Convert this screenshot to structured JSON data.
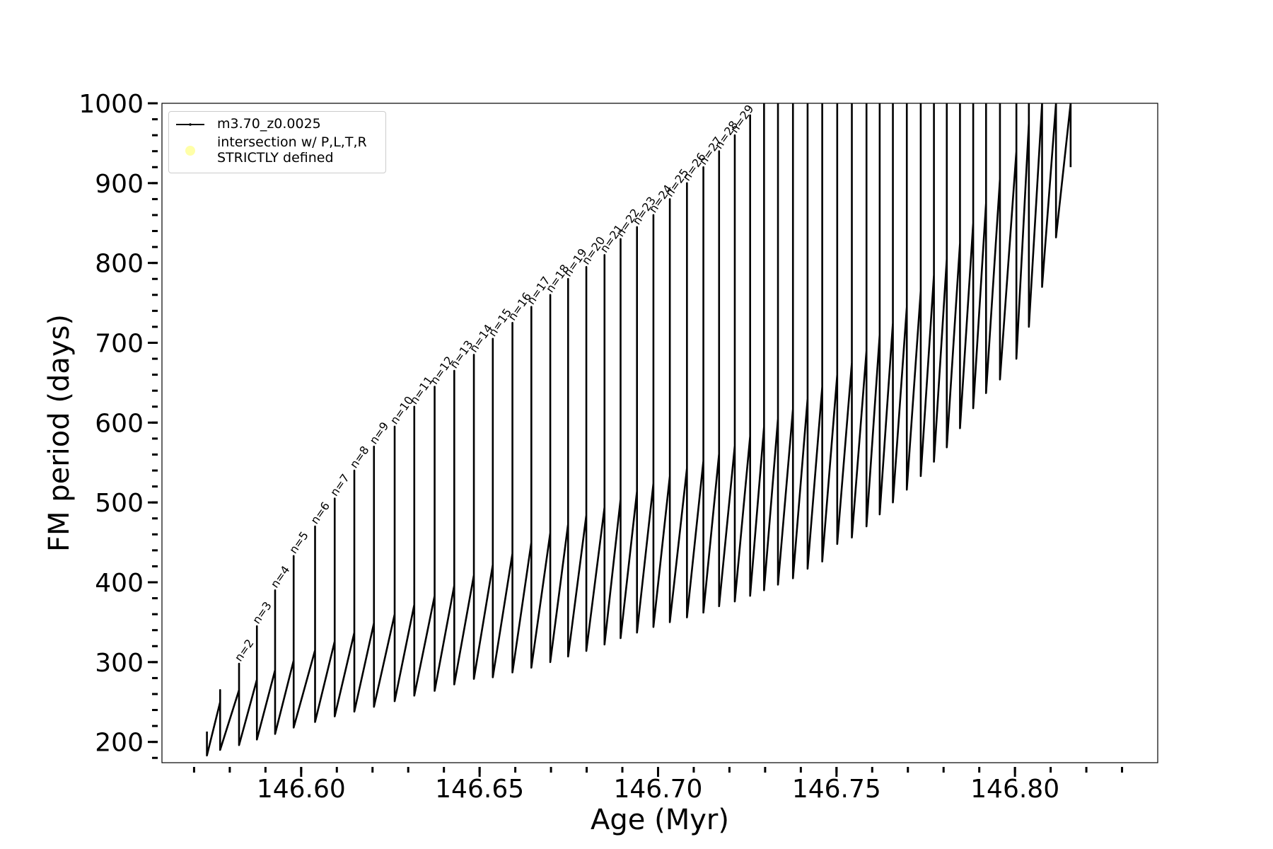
{
  "chart_data": {
    "type": "line",
    "xlabel": "Age (Myr)",
    "ylabel": "FM period (days)",
    "xlim": [
      146.561,
      146.84
    ],
    "ylim": [
      174,
      1000
    ],
    "xticks": [
      {
        "value": 146.6,
        "label": "146.60"
      },
      {
        "value": 146.65,
        "label": "146.65"
      },
      {
        "value": 146.7,
        "label": "146.70"
      },
      {
        "value": 146.75,
        "label": "146.75"
      },
      {
        "value": 146.8,
        "label": "146.80"
      }
    ],
    "xminorticks": [
      146.57,
      146.58,
      146.59,
      146.6,
      146.61,
      146.62,
      146.63,
      146.64,
      146.65,
      146.66,
      146.67,
      146.68,
      146.69,
      146.7,
      146.71,
      146.72,
      146.73,
      146.74,
      146.75,
      146.76,
      146.77,
      146.78,
      146.79,
      146.8,
      146.81,
      146.82,
      146.83
    ],
    "yticks": [
      200,
      300,
      400,
      500,
      600,
      700,
      800,
      900,
      1000
    ],
    "yminorticks": [
      180,
      200,
      220,
      240,
      260,
      280,
      300,
      320,
      340,
      360,
      380,
      400,
      420,
      440,
      460,
      480,
      500,
      520,
      540,
      560,
      580,
      600,
      620,
      640,
      660,
      680,
      700,
      720,
      740,
      760,
      780,
      800,
      820,
      840,
      860,
      880,
      900,
      920,
      940,
      960,
      980,
      1000
    ],
    "legend_loc": "upper left",
    "series": [
      {
        "name": "m3.70_z0.0025",
        "color": "#000000",
        "x": [
          146.5736,
          146.5736,
          146.5736,
          146.5773,
          146.5773,
          146.5773,
          146.5826,
          146.5826,
          146.5826,
          146.5876,
          146.5876,
          146.5876,
          146.5927,
          146.5927,
          146.5927,
          146.5979,
          146.5979,
          146.5979,
          146.6039,
          146.6039,
          146.6039,
          146.6094,
          146.6094,
          146.6094,
          146.6149,
          146.6149,
          146.6149,
          146.6204,
          146.6204,
          146.6204,
          146.6262,
          146.6262,
          146.6262,
          146.6317,
          146.6317,
          146.6317,
          146.6374,
          146.6374,
          146.6374,
          146.6429,
          146.6429,
          146.6429,
          146.6484,
          146.6484,
          146.6484,
          146.6537,
          146.6537,
          146.6537,
          146.6592,
          146.6592,
          146.6592,
          146.6645,
          146.6645,
          146.6645,
          146.6698,
          146.6698,
          146.6698,
          146.6748,
          146.6748,
          146.6748,
          146.6799,
          146.6799,
          146.6799,
          146.685,
          146.685,
          146.685,
          146.6895,
          146.6895,
          146.6895,
          146.6941,
          146.6941,
          146.6941,
          146.6987,
          146.6987,
          146.6987,
          146.7033,
          146.7033,
          146.7033,
          146.7081,
          146.7081,
          146.7081,
          146.7127,
          146.7127,
          146.7127,
          146.7171,
          146.7171,
          146.7171,
          146.7215,
          146.7215,
          146.7215,
          146.7258,
          146.7258,
          146.7258,
          146.7297,
          146.7297,
          146.7297,
          146.7336,
          146.7336,
          146.7336,
          146.7378,
          146.7378,
          146.7378,
          146.7419,
          146.7419,
          146.7419,
          146.746,
          146.746,
          146.746,
          146.7502,
          146.7502,
          146.7502,
          146.7543,
          146.7543,
          146.7543,
          146.7584,
          146.7584,
          146.7584,
          146.7621,
          146.7621,
          146.7621,
          146.7658,
          146.7658,
          146.7658,
          146.7697,
          146.7697,
          146.7697,
          146.7736,
          146.7736,
          146.7736,
          146.7773,
          146.7773,
          146.7773,
          146.7809,
          146.7809,
          146.7809,
          146.7846,
          146.7846,
          146.7846,
          146.7883,
          146.7883,
          146.7883,
          146.7919,
          146.7919,
          146.7919,
          146.7958,
          146.7958,
          146.7958,
          146.8004,
          146.8004,
          146.8004,
          146.8039,
          146.8039,
          146.8039,
          146.8076,
          146.8076,
          146.8076,
          146.8115,
          146.8115,
          146.8115,
          146.8156,
          146.8156,
          146.8156
        ],
        "values": [
          213,
          213,
          183,
          250,
          265,
          190,
          265,
          298,
          196,
          278,
          345,
          203,
          290,
          390,
          210,
          302,
          433,
          218,
          315,
          470,
          225,
          326,
          505,
          232,
          337,
          540,
          238,
          349,
          570,
          244,
          360,
          595,
          251,
          372,
          620,
          258,
          383,
          645,
          264,
          396,
          665,
          272,
          409,
          685,
          279,
          422,
          705,
          281,
          436,
          725,
          287,
          450,
          745,
          293,
          462,
          760,
          300,
          473,
          780,
          307,
          484,
          795,
          314,
          494,
          810,
          322,
          504,
          830,
          330,
          514,
          845,
          337,
          524,
          860,
          344,
          533,
          880,
          350,
          543,
          900,
          356,
          552,
          920,
          362,
          561,
          940,
          370,
          571,
          960,
          376,
          583,
          985,
          383,
          595,
          1000,
          390,
          605,
          1000,
          397,
          617,
          1000,
          405,
          630,
          1000,
          417,
          645,
          1000,
          426,
          660,
          1000,
          448,
          675,
          1000,
          456,
          690,
          1000,
          470,
          710,
          1000,
          485,
          725,
          1000,
          500,
          745,
          1000,
          516,
          765,
          1000,
          533,
          785,
          1000,
          551,
          805,
          1000,
          569,
          825,
          1000,
          593,
          850,
          1000,
          618,
          875,
          1000,
          637,
          905,
          1000,
          654,
          940,
          1000,
          680,
          975,
          1000,
          720,
          1000,
          1000,
          770,
          1000,
          1000,
          832,
          1000,
          1000,
          920
        ]
      },
      {
        "name": "intersection w/ P,L,T,R\nSTRICTLY defined",
        "color": "#ffffa8",
        "x": [],
        "values": []
      }
    ],
    "annotations": [
      "n=2",
      "n=3",
      "n=4",
      "n=5",
      "n=6",
      "n=7",
      "n=8",
      "n=9",
      "n=10",
      "n=11",
      "n=12",
      "n=13",
      "n=14",
      "n=15",
      "n=16",
      "n=17",
      "n=18",
      "n=19",
      "n=20",
      "n=21",
      "n=22",
      "n=23",
      "n=24",
      "n=25",
      "n=26",
      "n=27",
      "n=28",
      "n=29"
    ]
  }
}
